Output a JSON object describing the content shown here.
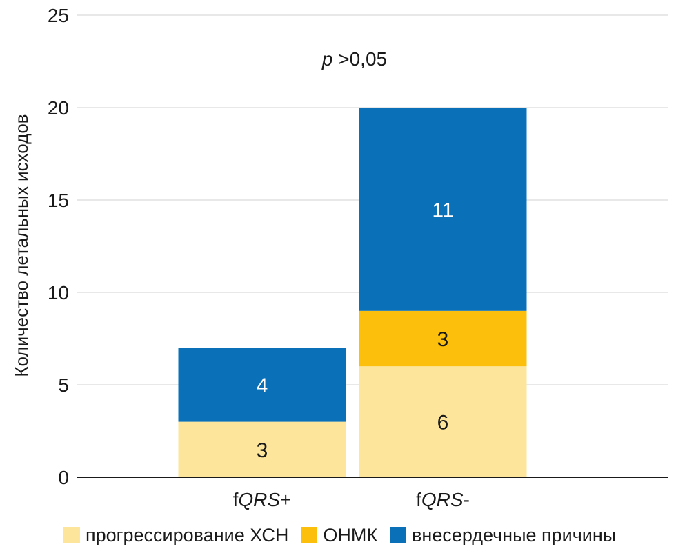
{
  "chart_data": {
    "type": "bar",
    "stacked": true,
    "categories": [
      "fQRS+",
      "fQRS-"
    ],
    "category_parts": [
      {
        "prefix": "f",
        "italic": "QRS",
        "suffix": "+"
      },
      {
        "prefix": "f",
        "italic": "QRS",
        "suffix": "-"
      }
    ],
    "series": [
      {
        "name": "прогрессирование ХСН",
        "color": "#FDE69B",
        "label_color": "#1a1a1a",
        "values": [
          3,
          6
        ]
      },
      {
        "name": "ОНМК",
        "color": "#FBBF0C",
        "label_color": "#1a1a1a",
        "values": [
          0,
          3
        ]
      },
      {
        "name": "внесердечные причины",
        "color": "#0A70B8",
        "label_color": "#ffffff",
        "values": [
          4,
          11
        ]
      }
    ],
    "ylabel": "Количество летальных исходов",
    "ylim": [
      0,
      25
    ],
    "yticks": [
      0,
      5,
      10,
      15,
      20,
      25
    ],
    "grid": true,
    "legend_position": "bottom",
    "annotation": {
      "italic": "p",
      "rest": " >0,05"
    }
  }
}
